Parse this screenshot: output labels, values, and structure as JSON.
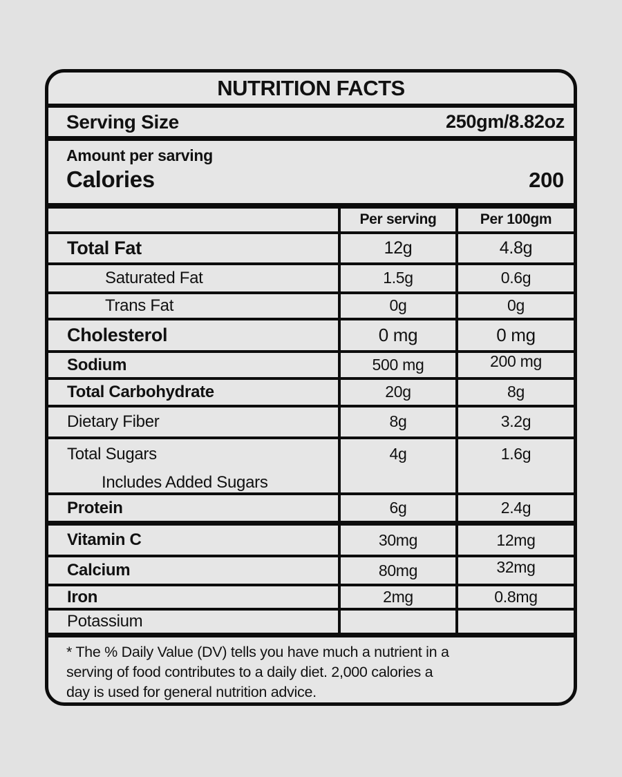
{
  "colors": {
    "background": "#e2e2e2",
    "line": "#0d0d0d",
    "text": "#111111"
  },
  "label": {
    "title": "NUTRITION FACTS",
    "serving": {
      "label": "Serving Size",
      "value": "250gm/8.82oz"
    },
    "amount_per": "Amount per sarving",
    "calories": {
      "label": "Calories",
      "value": "200"
    },
    "table": {
      "col_headers": [
        "Per serving",
        "Per 100gm"
      ],
      "rows": [
        {
          "name": "Total Fat",
          "per_serving": "12g",
          "per_100gm": "4.8g"
        },
        {
          "name": "Saturated Fat",
          "per_serving": "1.5g",
          "per_100gm": "0.6g"
        },
        {
          "name": "Trans Fat",
          "per_serving": "0g",
          "per_100gm": "0g"
        },
        {
          "name": "Cholesterol",
          "per_serving": "0 mg",
          "per_100gm": "0 mg"
        },
        {
          "name": "Sodium",
          "per_serving": "500 mg",
          "per_100gm": "200 mg"
        },
        {
          "name": "Total Carbohydrate",
          "per_serving": "20g",
          "per_100gm": "8g"
        },
        {
          "name": "Dietary Fiber",
          "per_serving": "8g",
          "per_100gm": "3.2g"
        },
        {
          "name": "Total Sugars",
          "name2": "Includes Added Sugars",
          "per_serving": "4g",
          "per_100gm": "1.6g"
        },
        {
          "name": "Protein",
          "per_serving": "6g",
          "per_100gm": "2.4g"
        },
        {
          "name": "Vitamin C",
          "per_serving": "30mg",
          "per_100gm": "12mg"
        },
        {
          "name": "Calcium",
          "per_serving": "80mg",
          "per_100gm": "32mg"
        },
        {
          "name": "Iron",
          "per_serving": "2mg",
          "per_100gm": "0.8mg"
        },
        {
          "name": "Potassium",
          "per_serving": "",
          "per_100gm": ""
        }
      ]
    },
    "footnote_lines": [
      "* The % Daily Value (DV) tells you have much a nutrient in a",
      "serving of food contributes to a daily diet. 2,000 calories a",
      "day is used for general nutrition advice."
    ]
  }
}
